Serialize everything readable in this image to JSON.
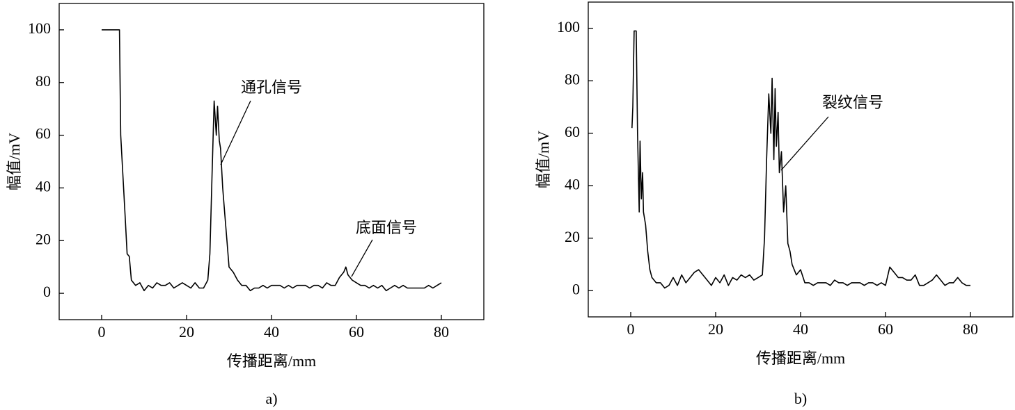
{
  "chart_data": [
    {
      "type": "line",
      "caption": "a)",
      "xlabel": "传播距离/mm",
      "ylabel": "幅值/mV",
      "annotations": [
        "通孔信号",
        "底面信号"
      ],
      "xlim": [
        -10,
        90
      ],
      "ylim": [
        -10,
        110
      ],
      "xticks": [
        0,
        20,
        40,
        60,
        80
      ],
      "yticks": [
        0,
        20,
        40,
        60,
        80,
        100
      ],
      "series": [
        {
          "color": "#000000",
          "x": [
            0,
            4.2,
            4.5,
            5,
            5.5,
            6,
            6.5,
            7,
            8,
            9,
            10,
            11,
            12,
            13,
            14,
            15,
            16,
            17,
            18,
            19,
            20,
            21,
            22,
            23,
            24,
            25,
            25.5,
            26,
            26.5,
            27,
            27.3,
            27.7,
            28,
            28.5,
            29,
            29.5,
            30,
            31,
            32,
            33,
            34,
            35,
            36,
            37,
            38,
            39,
            40,
            41,
            42,
            43,
            44,
            45,
            46,
            47,
            48,
            49,
            50,
            51,
            52,
            53,
            54,
            55,
            56,
            57,
            57.5,
            58,
            59,
            60,
            61,
            62,
            63,
            64,
            65,
            66,
            67,
            68,
            69,
            70,
            71,
            72,
            73,
            74,
            75,
            76,
            77,
            78,
            79,
            80
          ],
          "values": [
            100,
            100,
            60,
            45,
            30,
            15,
            14,
            5,
            3,
            4,
            1,
            3,
            2,
            4,
            3,
            3,
            4,
            2,
            3,
            4,
            3,
            2,
            4,
            2,
            2,
            5,
            15,
            45,
            73,
            60,
            71,
            58,
            55,
            40,
            30,
            20,
            10,
            8,
            5,
            3,
            3,
            1,
            2,
            2,
            3,
            2,
            3,
            3,
            3,
            2,
            3,
            2,
            3,
            3,
            3,
            2,
            3,
            3,
            2,
            4,
            3,
            3,
            6,
            8,
            10,
            7,
            5,
            4,
            3,
            3,
            2,
            3,
            2,
            3,
            1,
            2,
            3,
            2,
            3,
            2,
            2,
            2,
            2,
            2,
            3,
            2,
            3,
            4
          ]
        }
      ]
    },
    {
      "type": "line",
      "caption": "b)",
      "xlabel": "传播距离/mm",
      "ylabel": "幅值/mV",
      "annotations": [
        "裂纹信号"
      ],
      "xlim": [
        -10,
        90
      ],
      "ylim": [
        -10,
        110
      ],
      "xticks": [
        0,
        20,
        40,
        60,
        80
      ],
      "yticks": [
        0,
        20,
        40,
        60,
        80,
        100
      ],
      "series": [
        {
          "color": "#000000",
          "x": [
            0.3,
            0.5,
            0.8,
            1.3,
            1.6,
            2,
            2.2,
            2.5,
            2.8,
            3,
            3.5,
            4,
            4.5,
            5,
            6,
            7,
            8,
            9,
            10,
            11,
            12,
            13,
            14,
            15,
            16,
            17,
            18,
            19,
            20,
            21,
            22,
            23,
            24,
            25,
            26,
            27,
            28,
            29,
            30,
            31,
            31.5,
            32,
            32.5,
            33,
            33.3,
            33.7,
            34,
            34.3,
            34.7,
            35,
            35.5,
            36,
            36.5,
            37,
            37.5,
            38,
            39,
            40,
            41,
            42,
            43,
            44,
            45,
            46,
            47,
            48,
            49,
            50,
            51,
            52,
            53,
            54,
            55,
            56,
            57,
            58,
            59,
            60,
            61,
            62,
            63,
            64,
            65,
            66,
            67,
            68,
            69,
            70,
            71,
            72,
            73,
            74,
            75,
            76,
            77,
            78,
            79,
            80
          ],
          "values": [
            62,
            70,
            99,
            99,
            60,
            30,
            57,
            35,
            45,
            30,
            25,
            15,
            8,
            5,
            3,
            3,
            1,
            2,
            5,
            2,
            6,
            3,
            5,
            7,
            8,
            6,
            4,
            2,
            5,
            3,
            6,
            2,
            5,
            4,
            6,
            5,
            6,
            4,
            5,
            6,
            20,
            50,
            75,
            60,
            81,
            50,
            77,
            55,
            68,
            45,
            53,
            30,
            40,
            18,
            15,
            10,
            6,
            8,
            3,
            3,
            2,
            3,
            3,
            3,
            2,
            4,
            3,
            3,
            2,
            3,
            3,
            3,
            2,
            3,
            3,
            2,
            3,
            2,
            9,
            7,
            5,
            5,
            4,
            4,
            6,
            2,
            2,
            3,
            4,
            6,
            4,
            2,
            3,
            3,
            5,
            3,
            2,
            2
          ]
        }
      ]
    }
  ]
}
